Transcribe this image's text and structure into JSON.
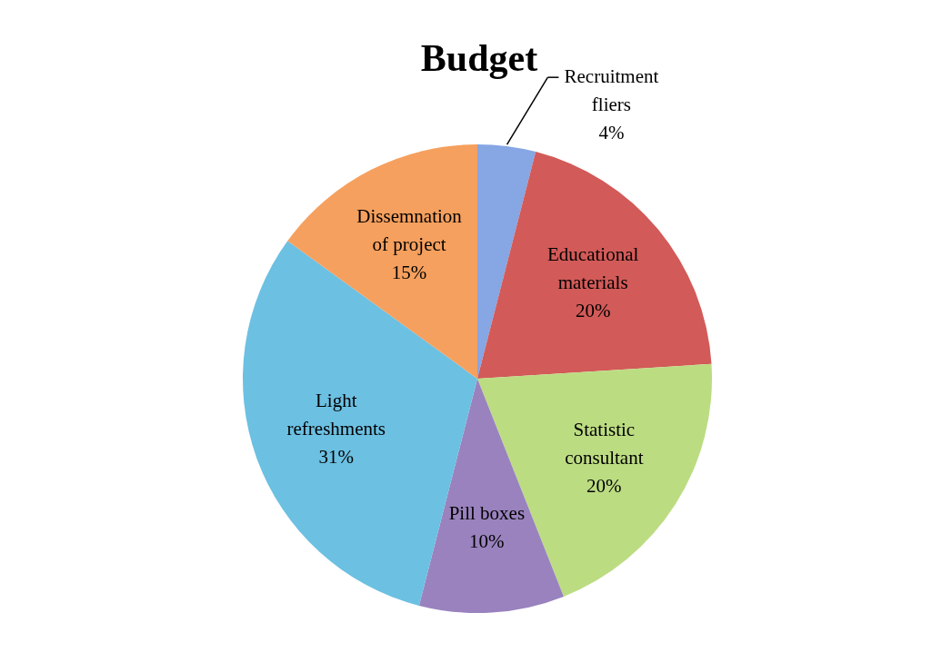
{
  "chart_data": {
    "type": "pie",
    "title": "Budget",
    "categories": [
      "Recruitment fliers",
      "Educational materials",
      "Statistic consultant",
      "Pill boxes",
      "Light refreshments",
      "Dissemnation of project"
    ],
    "values": [
      4,
      20,
      20,
      10,
      31,
      15
    ],
    "value_labels": [
      "4%",
      "20%",
      "20%",
      "10%",
      "31%",
      "15%"
    ],
    "colors": [
      "#86a6e4",
      "#d25a58",
      "#bcdc82",
      "#9a82be",
      "#6cc0e2",
      "#f5a05e"
    ]
  }
}
